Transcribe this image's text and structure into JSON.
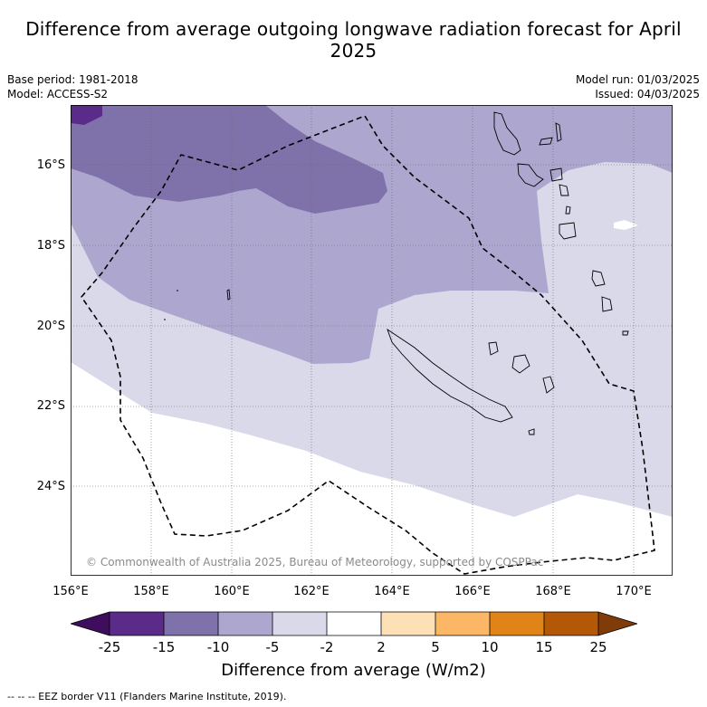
{
  "title": "Difference from average outgoing longwave radiation forecast for April 2025",
  "meta": {
    "base_period": "Base period: 1981-2018",
    "model": "Model: ACCESS-S2",
    "model_run": "Model run: 01/03/2025",
    "issued": "Issued: 04/03/2025"
  },
  "map": {
    "latitude_labels": [
      "16°S",
      "18°S",
      "20°S",
      "22°S",
      "24°S"
    ],
    "longitude_labels": [
      "156°E",
      "158°E",
      "160°E",
      "162°E",
      "164°E",
      "166°E",
      "168°E",
      "170°E"
    ],
    "copyright": "© Commonwealth of Australia 2025, Bureau of Meteorology, supported by COSPPac"
  },
  "colorbar": {
    "title": "Difference from average (W/m2)",
    "ticks": [
      "-25",
      "-15",
      "-10",
      "-5",
      "-2",
      "2",
      "5",
      "10",
      "15",
      "25"
    ],
    "colors": [
      "#3f0d5e",
      "#5a2b88",
      "#7f72aa",
      "#ada7cf",
      "#d9d9ea",
      "#ffffff",
      "#fde0b6",
      "#fbb766",
      "#e08418",
      "#b35806",
      "#7f3b08"
    ]
  },
  "legend_note": "-- -- -- EEZ border V11 (Flanders Marine Institute, 2019)."
}
